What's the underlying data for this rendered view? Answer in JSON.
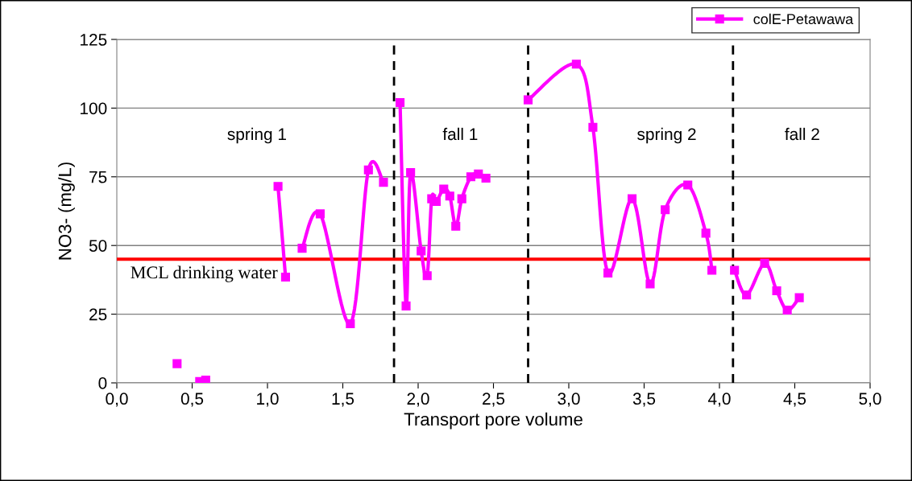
{
  "chart_data": {
    "type": "line",
    "xlabel": "Transport pore volume",
    "ylabel": "NO3- (mg/L)",
    "series": [
      {
        "name": "colE-Petawawa",
        "color": "#ff00ff",
        "x": [
          0.4,
          null,
          0.55,
          0.59,
          null,
          1.07,
          1.12,
          null,
          1.23,
          1.35,
          1.55,
          1.67,
          1.77,
          null,
          1.88,
          1.92,
          1.95,
          2.02,
          2.06,
          2.09,
          2.12,
          2.17,
          2.21,
          2.25,
          2.29,
          2.35,
          2.4,
          2.45,
          null,
          2.73,
          3.05,
          3.16,
          3.26,
          3.42,
          3.54,
          3.64,
          3.79,
          3.91,
          3.95,
          null,
          4.1,
          4.18,
          4.3,
          4.38,
          4.45,
          4.53
        ],
        "values": [
          7,
          null,
          0.5,
          1,
          null,
          71.5,
          38.5,
          null,
          49,
          61.5,
          21.5,
          77.5,
          73,
          null,
          102,
          28,
          76.5,
          48,
          39,
          67,
          66,
          70.5,
          68,
          57,
          67,
          75,
          76,
          74.5,
          null,
          103,
          116,
          93,
          40,
          67,
          36,
          63,
          72,
          54.5,
          41,
          null,
          41,
          32,
          43.5,
          33.5,
          26.5,
          31
        ]
      }
    ],
    "xlim": [
      0,
      5
    ],
    "ylim": [
      0,
      125
    ],
    "xticks": [
      {
        "value": 0,
        "label": "0,0"
      },
      {
        "value": 0.5,
        "label": "0,5"
      },
      {
        "value": 1,
        "label": "1,0"
      },
      {
        "value": 1.5,
        "label": "1,5"
      },
      {
        "value": 2,
        "label": "2,0"
      },
      {
        "value": 2.5,
        "label": "2,5"
      },
      {
        "value": 3,
        "label": "3,0"
      },
      {
        "value": 3.5,
        "label": "3,5"
      },
      {
        "value": 4,
        "label": "4,0"
      },
      {
        "value": 4.5,
        "label": "4,5"
      },
      {
        "value": 5,
        "label": "5,0"
      }
    ],
    "yticks": [
      0,
      25,
      50,
      75,
      100,
      125
    ],
    "ref_lines": [
      {
        "axis": "y",
        "value": 45,
        "label": "MCL drinking water",
        "color": "#ff0000",
        "line_style": "solid"
      },
      {
        "axis": "x",
        "value": 1.84,
        "color": "#000000",
        "line_style": "dashed"
      },
      {
        "axis": "x",
        "value": 2.73,
        "color": "#000000",
        "line_style": "dashed"
      },
      {
        "axis": "x",
        "value": 4.09,
        "color": "#000000",
        "line_style": "dashed"
      }
    ],
    "annotations": [
      "spring 1",
      "fall 1",
      "spring 2",
      "fall 2"
    ],
    "grid": "y",
    "legend": "top right",
    "marker": "square",
    "line_style": "solid"
  }
}
